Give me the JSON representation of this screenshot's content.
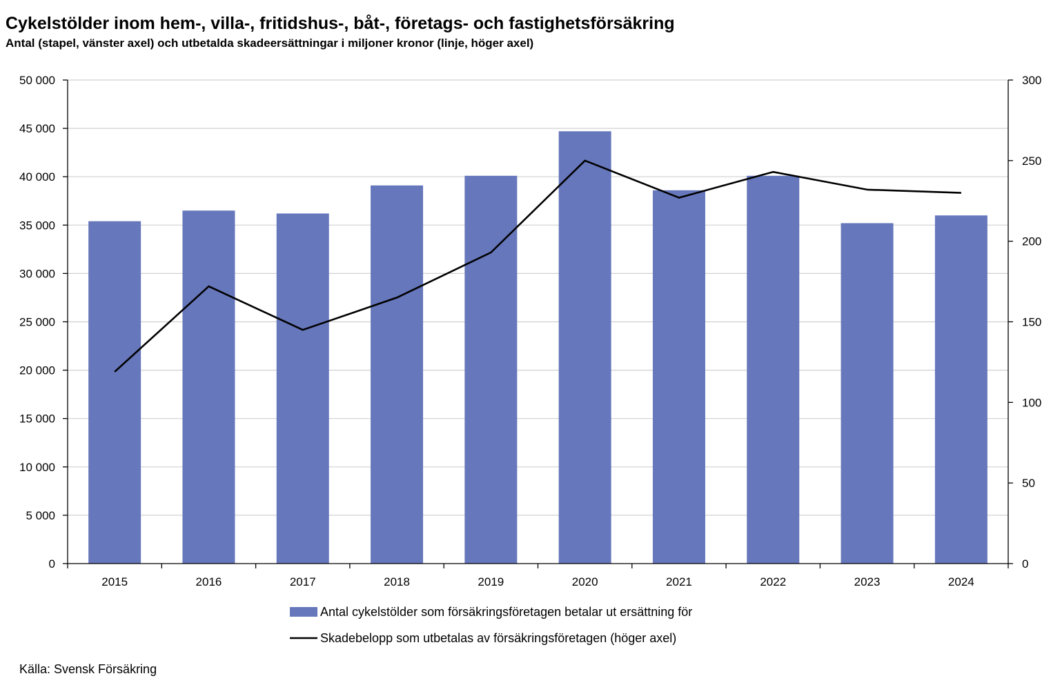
{
  "title": "Cykelstölder inom hem-, villa-, fritidshus-, båt-, företags- och fastighetsförsäkring",
  "subtitle": "Antal (stapel, vänster axel) och utbetalda skadeersättningar i miljoner kronor (linje, höger axel)",
  "source": "Källa: Svensk Försäkring",
  "chart_data": {
    "type": "bar",
    "categories": [
      "2015",
      "2016",
      "2017",
      "2018",
      "2019",
      "2020",
      "2021",
      "2022",
      "2023",
      "2024"
    ],
    "series": [
      {
        "name": "Antal cykelstölder som försäkringsföretagen betalar ut ersättning för",
        "type": "bar",
        "axis": "left",
        "color": "#6677BB",
        "values": [
          35400,
          36500,
          36200,
          39100,
          40100,
          44700,
          38600,
          40100,
          35200,
          36000
        ]
      },
      {
        "name": "Skadebelopp som utbetalas av försäkringsföretagen (höger axel)",
        "type": "line",
        "axis": "right",
        "color": "#000000",
        "values": [
          119,
          172,
          145,
          165,
          193,
          250,
          227,
          243,
          232,
          230
        ]
      }
    ],
    "y_left": {
      "range": [
        0,
        50000
      ],
      "ticks": [
        0,
        5000,
        10000,
        15000,
        20000,
        25000,
        30000,
        35000,
        40000,
        45000,
        50000
      ],
      "tick_labels": [
        "0",
        "5 000",
        "10 000",
        "15 000",
        "20 000",
        "25 000",
        "30 000",
        "35 000",
        "40 000",
        "45 000",
        "50 000"
      ]
    },
    "y_right": {
      "range": [
        0,
        300
      ],
      "ticks": [
        0,
        50,
        100,
        150,
        200,
        250,
        300
      ],
      "tick_labels": [
        "0",
        "50",
        "100",
        "150",
        "200",
        "250",
        "300"
      ]
    },
    "grid": true,
    "legend_position": "bottom"
  }
}
